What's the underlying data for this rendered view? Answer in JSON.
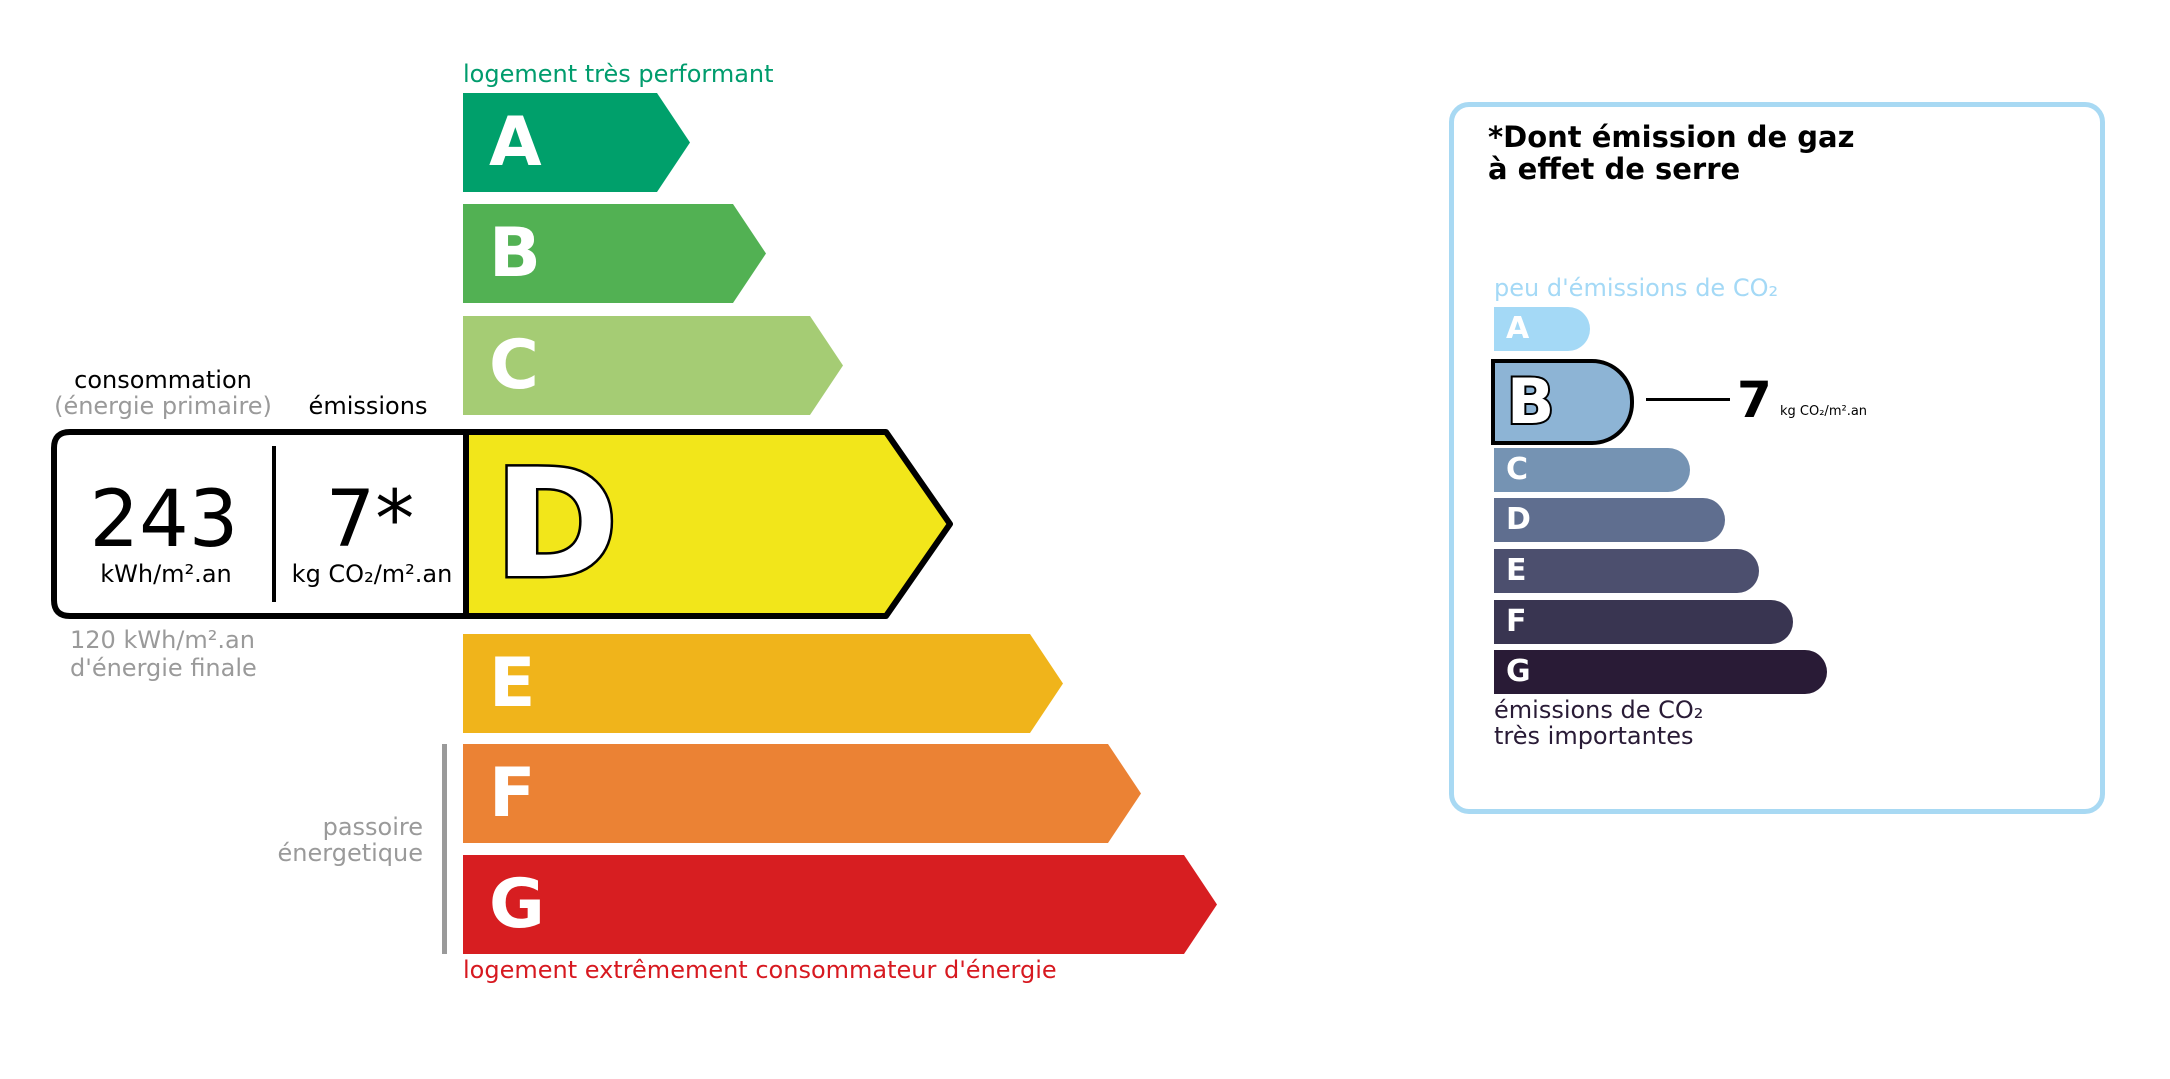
{
  "energy": {
    "top_label": "logement très performant",
    "bottom_label": "logement extrêmement consommateur d'énergie",
    "top_label_color": "#009c6d",
    "bottom_label_color": "#d71920",
    "passoire_line1": "passoire",
    "passoire_line2": "énergetique",
    "classes": [
      {
        "letter": "A",
        "color": "#00a06b"
      },
      {
        "letter": "B",
        "color": "#52b153"
      },
      {
        "letter": "C",
        "color": "#a5cc74"
      },
      {
        "letter": "D",
        "color": "#f2e61a"
      },
      {
        "letter": "E",
        "color": "#f0b41b"
      },
      {
        "letter": "F",
        "color": "#eb8234"
      },
      {
        "letter": "G",
        "color": "#d71e21"
      }
    ],
    "current_class": "D",
    "consumption_label": "consommation",
    "consumption_sublabel": "(énergie primaire)",
    "emissions_label": "émissions",
    "consumption_value": "243",
    "consumption_unit": "kWh/m².an",
    "emissions_value": "7*",
    "emissions_unit": "kg CO₂/m².an",
    "final_energy_line1": "120 kWh/m².an",
    "final_energy_line2": "d'énergie finale"
  },
  "ges": {
    "title_line1": "*Dont émission de gaz",
    "title_line2": "à effet de serre",
    "top_label": "peu d'émissions de CO₂",
    "bottom_label_line1": "émissions de CO₂",
    "bottom_label_line2": "très importantes",
    "border_color": "#a8d9f3",
    "classes": [
      {
        "letter": "A",
        "color": "#a4d9f6"
      },
      {
        "letter": "B",
        "color": "#8db4d5"
      },
      {
        "letter": "C",
        "color": "#7593b3"
      },
      {
        "letter": "D",
        "color": "#5f6e8f"
      },
      {
        "letter": "E",
        "color": "#4c4f6e"
      },
      {
        "letter": "F",
        "color": "#393551"
      },
      {
        "letter": "G",
        "color": "#291b36"
      }
    ],
    "current_class": "B",
    "value": "7",
    "unit": "kg CO₂/m².an"
  }
}
